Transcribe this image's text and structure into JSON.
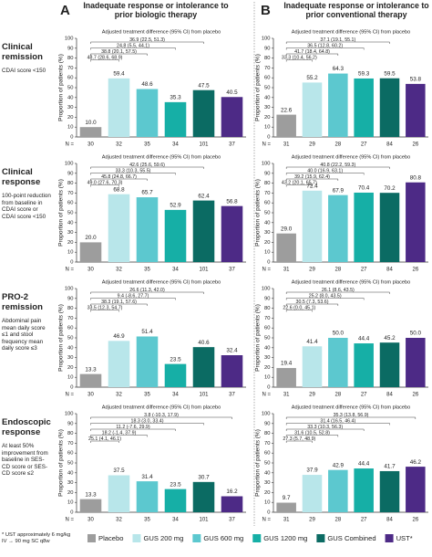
{
  "panels": [
    {
      "letter": "A",
      "title": "Inadequate response or intolerance to prior biologic therapy"
    },
    {
      "letter": "B",
      "title": "Inadequate response or intolerance to prior conventional therapy"
    }
  ],
  "rows": [
    {
      "title": "Clinical remission",
      "subtitle": "CDAI score <150"
    },
    {
      "title": "Clinical response",
      "subtitle": "100-point reduction from baseline in CDAI score or CDAI score <150"
    },
    {
      "title": "PRO-2 remission",
      "subtitle": "Abdominal pain mean daily score ≤1 and stool frequency mean daily score ≤3"
    },
    {
      "title": "Endoscopic response",
      "subtitle": "At least 50% improvement from baseline in SES-CD score or SES-CD score ≤2"
    }
  ],
  "legend": [
    {
      "name": "Placebo",
      "color": "#9d9d9d"
    },
    {
      "name": "GUS 200 mg",
      "color": "#b8e6ea"
    },
    {
      "name": "GUS 600 mg",
      "color": "#5cc8cf"
    },
    {
      "name": "GUS 1200 mg",
      "color": "#16afa6"
    },
    {
      "name": "GUS Combined",
      "color": "#0b6b63"
    },
    {
      "name": "UST*",
      "color": "#4d2a86"
    }
  ],
  "footnote": "* UST approximately 6 mg/kg IV → 90 mg SC q8w",
  "chart_data": [
    {
      "type": "bar",
      "ylabel": "Proportion of patients (%)",
      "ylim": [
        0,
        100
      ],
      "yticks": [
        0,
        10,
        20,
        30,
        40,
        50,
        60,
        70,
        80,
        90,
        100
      ],
      "diff_title": "Adjusted treatment difference (95% CI) from placebo",
      "diffs": [
        "36.9 (22.5, 51.3)",
        "24.8 (5.5, 44.1)",
        "38.8 (20.1, 57.5)",
        "48.7 (28.6, 68.9)"
      ],
      "n_label": "N =",
      "n": [
        30,
        32,
        35,
        34,
        101,
        37
      ],
      "values": [
        10.0,
        59.4,
        48.6,
        35.3,
        47.5,
        40.5
      ],
      "value_labels": [
        "10.0",
        "59.4",
        "48.6",
        "35.3",
        "47.5",
        "40.5"
      ]
    },
    {
      "type": "bar",
      "ylabel": "Proportion of patients (%)",
      "ylim": [
        0,
        100
      ],
      "yticks": [
        0,
        10,
        20,
        30,
        40,
        50,
        60,
        70,
        80,
        90,
        100
      ],
      "diff_title": "Adjusted treatment difference (95% CI) from placebo",
      "diffs": [
        "37.1 (19.1, 55.1)",
        "36.5 (12.8, 60.2)",
        "41.7 (18.4, 64.8)",
        "33.3 (10.4, 56.2)"
      ],
      "n_label": "N =",
      "n": [
        31,
        29,
        28,
        27,
        84,
        26
      ],
      "values": [
        22.6,
        55.2,
        64.3,
        59.3,
        59.5,
        53.8
      ],
      "value_labels": [
        "22.6",
        "55.2",
        "64.3",
        "59.3",
        "59.5",
        "53.8"
      ]
    },
    {
      "type": "bar",
      "ylabel": "Proportion of patients (%)",
      "ylim": [
        0,
        100
      ],
      "yticks": [
        0,
        10,
        20,
        30,
        40,
        50,
        60,
        70,
        80,
        90,
        100
      ],
      "diff_title": "Adjusted treatment difference (95% CI) from placebo",
      "diffs": [
        "42.6 (25.6, 59.6)",
        "33.3 (10.3, 55.5)",
        "45.8 (24.8, 66.7)",
        "49.0 (27.6, 70.3)"
      ],
      "n_label": "N =",
      "n": [
        30,
        32,
        35,
        34,
        101,
        37
      ],
      "values": [
        20.0,
        68.8,
        65.7,
        52.9,
        62.4,
        56.8
      ],
      "value_labels": [
        "20.0",
        "68.8",
        "65.7",
        "52.9",
        "62.4",
        "56.8"
      ]
    },
    {
      "type": "bar",
      "ylabel": "Proportion of patients (%)",
      "ylim": [
        0,
        100
      ],
      "yticks": [
        0,
        10,
        20,
        30,
        40,
        50,
        60,
        70,
        80,
        90,
        100
      ],
      "diff_title": "Adjusted treatment difference (95% CI) from placebo",
      "diffs": [
        "40.8 (22.2, 59.3)",
        "40.0 (16.9, 63.1)",
        "39.2 (15.9, 62.4)",
        "43.2 (20.1, 65.7)"
      ],
      "n_label": "N =",
      "n": [
        31,
        29,
        28,
        27,
        84,
        26
      ],
      "values": [
        29.0,
        72.4,
        67.9,
        70.4,
        70.2,
        80.8
      ],
      "value_labels": [
        "29.0",
        "72.4",
        "67.9",
        "70.4",
        "70.2",
        "80.8"
      ]
    },
    {
      "type": "bar",
      "ylabel": "Proportion of patients (%)",
      "ylim": [
        0,
        100
      ],
      "yticks": [
        0,
        10,
        20,
        30,
        40,
        50,
        60,
        70,
        80,
        90,
        100
      ],
      "diff_title": "Adjusted treatment difference (95% CI) from placebo",
      "diffs": [
        "26.6 (11.3, 42.0)",
        "9.4 (-8.6, 27.7)",
        "38.3 (19.1, 57.6)",
        "33.5 (12.3, 54.7)"
      ],
      "n_label": "N =",
      "n": [
        30,
        32,
        35,
        34,
        101,
        37
      ],
      "values": [
        13.3,
        46.9,
        51.4,
        23.5,
        40.6,
        32.4
      ],
      "value_labels": [
        "13.3",
        "46.9",
        "51.4",
        "23.5",
        "40.6",
        "32.4"
      ]
    },
    {
      "type": "bar",
      "ylabel": "Proportion of patients (%)",
      "ylim": [
        0,
        100
      ],
      "yticks": [
        0,
        10,
        20,
        30,
        40,
        50,
        60,
        70,
        80,
        90,
        100
      ],
      "diff_title": "Adjusted treatment difference (95% CI) from placebo",
      "diffs": [
        "26.1 (8.6, 43.5)",
        "25.2 (8.0, 43.5)",
        "30.5 (7.3, 53.6)",
        "22.6 (0.0, 45.1)"
      ],
      "n_label": "N =",
      "n": [
        31,
        29,
        28,
        27,
        84,
        26
      ],
      "values": [
        19.4,
        41.4,
        50.0,
        44.4,
        45.2,
        50.0
      ],
      "value_labels": [
        "19.4",
        "41.4",
        "50.0",
        "44.4",
        "45.2",
        "50.0"
      ]
    },
    {
      "type": "bar",
      "ylabel": "Proportion of patients (%)",
      "ylim": [
        0,
        100
      ],
      "yticks": [
        0,
        10,
        20,
        30,
        40,
        50,
        60,
        70,
        80,
        90,
        100
      ],
      "diff_title": "Adjusted treatment difference (95% CI) from placebo",
      "diffs": [
        "3.8 (-10.3, 17.9)",
        "18.3 (3.0, 33.4)",
        "11.2 (-7.6, 29.9)",
        "18.2 (-1.4, 37.9)",
        "25.1 (4.1, 46.1)"
      ],
      "n_label": "N =",
      "n": [
        30,
        32,
        35,
        34,
        101,
        37
      ],
      "values": [
        13.3,
        37.5,
        31.4,
        23.5,
        30.7,
        16.2
      ],
      "value_labels": [
        "13.3",
        "37.5",
        "31.4",
        "23.5",
        "30.7",
        "16.2"
      ]
    },
    {
      "type": "bar",
      "ylabel": "Proportion of patients (%)",
      "ylim": [
        0,
        100
      ],
      "yticks": [
        0,
        10,
        20,
        30,
        40,
        50,
        60,
        70,
        80,
        90,
        100
      ],
      "diff_title": "Adjusted treatment difference (95% CI) from placebo",
      "diffs": [
        "35.3 (13.8, 56.9)",
        "31.4 (16.5, 46.4)",
        "33.3 (10.3, 56.3)",
        "31.6 (10.5, 52.8)",
        "27.3 (5.7, 48.9)"
      ],
      "n_label": "N =",
      "n": [
        31,
        29,
        28,
        27,
        84,
        26
      ],
      "values": [
        9.7,
        37.9,
        42.9,
        44.4,
        41.7,
        46.2
      ],
      "value_labels": [
        "9.7",
        "37.9",
        "42.9",
        "44.4",
        "41.7",
        "46.2"
      ]
    }
  ]
}
